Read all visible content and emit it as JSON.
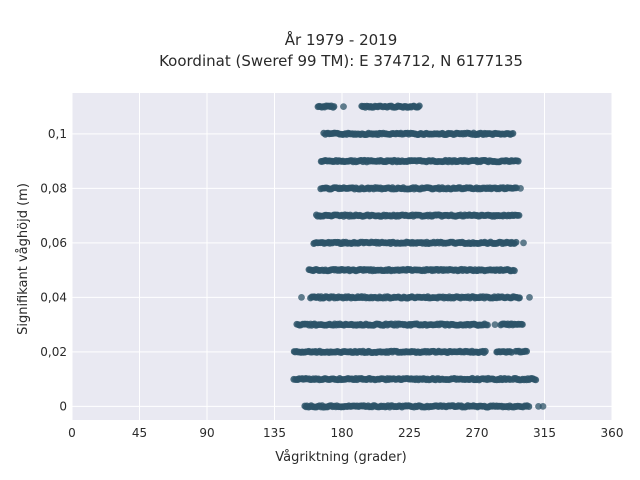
{
  "chart_data": {
    "type": "scatter",
    "title_lines": [
      "År 1979 - 2019",
      "Koordinat (Sweref 99 TM): E 374712, N 6177135"
    ],
    "xlabel": "Vågriktning (grader)",
    "ylabel": "Signifikant våghöjd (m)",
    "xlim": [
      0,
      360
    ],
    "ylim": [
      -0.005,
      0.115
    ],
    "xticks": [
      0,
      45,
      90,
      135,
      180,
      225,
      270,
      315,
      360
    ],
    "xtick_labels": [
      "0",
      "45",
      "90",
      "135",
      "180",
      "225",
      "270",
      "315",
      "360"
    ],
    "yticks": [
      0,
      0.02,
      0.04,
      0.06,
      0.08,
      0.1
    ],
    "ytick_labels": [
      "0",
      "0,02",
      "0,04",
      "0,06",
      "0,08",
      "0,1"
    ],
    "grid": true,
    "background": "#e9e9f2",
    "marker_color": "#2d5468",
    "series": [
      {
        "rows": [
          {
            "y": 0.11,
            "segments": [
              [
                164,
                175
              ],
              [
                193,
                232
              ]
            ],
            "outliers": [
              181
            ]
          },
          {
            "y": 0.1,
            "segments": [
              [
                168,
                294
              ]
            ],
            "outliers": []
          },
          {
            "y": 0.09,
            "segments": [
              [
                166,
                298
              ]
            ],
            "outliers": []
          },
          {
            "y": 0.08,
            "segments": [
              [
                166,
                297
              ]
            ],
            "outliers": [
              299
            ]
          },
          {
            "y": 0.07,
            "segments": [
              [
                163,
                298
              ]
            ],
            "outliers": []
          },
          {
            "y": 0.06,
            "segments": [
              [
                161,
                296
              ]
            ],
            "outliers": [
              301
            ]
          },
          {
            "y": 0.05,
            "segments": [
              [
                158,
                295
              ]
            ],
            "outliers": []
          },
          {
            "y": 0.04,
            "segments": [
              [
                159,
                299
              ]
            ],
            "outliers": [
              153,
              305
            ]
          },
          {
            "y": 0.03,
            "segments": [
              [
                150,
                277
              ],
              [
                286,
                294
              ],
              [
                294,
                301
              ]
            ],
            "outliers": [
              282
            ]
          },
          {
            "y": 0.02,
            "segments": [
              [
                148,
                276
              ],
              [
                283,
                293
              ],
              [
                296,
                304
              ]
            ],
            "outliers": []
          },
          {
            "y": 0.01,
            "segments": [
              [
                148,
                292
              ],
              [
                294,
                310
              ]
            ],
            "outliers": []
          },
          {
            "y": 0.0,
            "segments": [
              [
                155,
                305
              ]
            ],
            "outliers": [
              311,
              314
            ]
          }
        ]
      }
    ]
  }
}
